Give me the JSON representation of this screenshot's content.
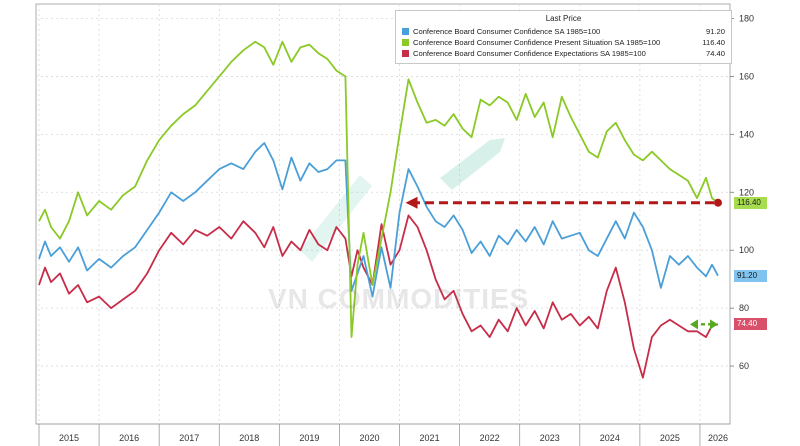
{
  "chart_data": {
    "type": "line",
    "ylim": [
      40,
      185
    ],
    "yticks": [
      60,
      80,
      100,
      120,
      140,
      160,
      180
    ],
    "xlim": [
      2014.95,
      2026.5
    ],
    "xticks": [
      {
        "label": "2015",
        "x": 2015.5
      },
      {
        "label": "2016",
        "x": 2016.5
      },
      {
        "label": "2017",
        "x": 2017.5
      },
      {
        "label": "2018",
        "x": 2018.5
      },
      {
        "label": "2019",
        "x": 2019.5
      },
      {
        "label": "2020",
        "x": 2020.5
      },
      {
        "label": "2021",
        "x": 2021.5
      },
      {
        "label": "2022",
        "x": 2022.5
      },
      {
        "label": "2023",
        "x": 2023.5
      },
      {
        "label": "2024",
        "x": 2024.5
      },
      {
        "label": "2025",
        "x": 2025.5
      },
      {
        "label": "2026",
        "x": 2026.3
      }
    ],
    "grid": true,
    "legend_position": "top-right",
    "legend_header": "Last Price",
    "series": [
      {
        "name": "Conference Board Consumer Confidence SA 1985=100",
        "color": "#4a9fd8",
        "last": "91.20",
        "x": [
          2015.0,
          2015.1,
          2015.2,
          2015.35,
          2015.5,
          2015.65,
          2015.8,
          2016.0,
          2016.2,
          2016.4,
          2016.6,
          2016.8,
          2017.0,
          2017.2,
          2017.4,
          2017.6,
          2017.8,
          2018.0,
          2018.2,
          2018.4,
          2018.6,
          2018.75,
          2018.9,
          2019.05,
          2019.2,
          2019.35,
          2019.5,
          2019.65,
          2019.8,
          2019.95,
          2020.1,
          2020.2,
          2020.3,
          2020.4,
          2020.55,
          2020.7,
          2020.85,
          2021.0,
          2021.15,
          2021.3,
          2021.45,
          2021.6,
          2021.75,
          2021.9,
          2022.05,
          2022.2,
          2022.35,
          2022.5,
          2022.65,
          2022.8,
          2022.95,
          2023.1,
          2023.25,
          2023.4,
          2023.55,
          2023.7,
          2023.85,
          2024.0,
          2024.15,
          2024.3,
          2024.45,
          2024.6,
          2024.75,
          2024.9,
          2025.05,
          2025.2,
          2025.35,
          2025.5,
          2025.65,
          2025.8,
          2025.95,
          2026.1,
          2026.2,
          2026.3
        ],
        "values": [
          97,
          103,
          98,
          101,
          96,
          101,
          93,
          97,
          94,
          98,
          101,
          107,
          113,
          120,
          117,
          120,
          124,
          128,
          130,
          128,
          134,
          137,
          131,
          121,
          132,
          124,
          130,
          127,
          128,
          131,
          131,
          86,
          92,
          98,
          84,
          101,
          87,
          113,
          128,
          122,
          115,
          110,
          108,
          112,
          107,
          99,
          103,
          98,
          105,
          102,
          107,
          103,
          108,
          102,
          110,
          104,
          105,
          106,
          100,
          98,
          104,
          110,
          104,
          113,
          108,
          100,
          87,
          98,
          95,
          98,
          94,
          91,
          95,
          91.2
        ]
      },
      {
        "name": "Conference Board Consumer Confidence Present Situation SA 1985=100",
        "color": "#8ac926",
        "last": "116.40",
        "x": [
          2015.0,
          2015.1,
          2015.2,
          2015.35,
          2015.5,
          2015.65,
          2015.8,
          2016.0,
          2016.2,
          2016.4,
          2016.6,
          2016.8,
          2017.0,
          2017.2,
          2017.4,
          2017.6,
          2017.8,
          2018.0,
          2018.2,
          2018.4,
          2018.6,
          2018.75,
          2018.9,
          2019.05,
          2019.2,
          2019.35,
          2019.5,
          2019.65,
          2019.8,
          2019.95,
          2020.1,
          2020.2,
          2020.3,
          2020.4,
          2020.55,
          2020.7,
          2020.85,
          2021.0,
          2021.15,
          2021.3,
          2021.45,
          2021.6,
          2021.75,
          2021.9,
          2022.05,
          2022.2,
          2022.35,
          2022.5,
          2022.65,
          2022.8,
          2022.95,
          2023.1,
          2023.25,
          2023.4,
          2023.55,
          2023.7,
          2023.85,
          2024.0,
          2024.15,
          2024.3,
          2024.45,
          2024.6,
          2024.75,
          2024.9,
          2025.05,
          2025.2,
          2025.35,
          2025.5,
          2025.65,
          2025.8,
          2025.95,
          2026.1,
          2026.2,
          2026.3
        ],
        "values": [
          110,
          114,
          108,
          104,
          110,
          120,
          112,
          117,
          114,
          119,
          122,
          131,
          138,
          143,
          147,
          150,
          155,
          160,
          165,
          169,
          172,
          170,
          164,
          172,
          165,
          170,
          171,
          168,
          166,
          162,
          160,
          70,
          95,
          106,
          88,
          104,
          120,
          140,
          159,
          151,
          144,
          145,
          143,
          147,
          142,
          139,
          152,
          150,
          153,
          151,
          145,
          154,
          146,
          151,
          139,
          153,
          146,
          140,
          134,
          132,
          141,
          144,
          138,
          133,
          131,
          134,
          131,
          128,
          126,
          124,
          118,
          125,
          118,
          116.4
        ]
      },
      {
        "name": "Conference Board Consumer Confidence Expectations SA 1985=100",
        "color": "#c72c48",
        "last": "74.40",
        "x": [
          2015.0,
          2015.1,
          2015.2,
          2015.35,
          2015.5,
          2015.65,
          2015.8,
          2016.0,
          2016.2,
          2016.4,
          2016.6,
          2016.8,
          2017.0,
          2017.2,
          2017.4,
          2017.6,
          2017.8,
          2018.0,
          2018.2,
          2018.4,
          2018.6,
          2018.75,
          2018.9,
          2019.05,
          2019.2,
          2019.35,
          2019.5,
          2019.65,
          2019.8,
          2019.95,
          2020.1,
          2020.2,
          2020.3,
          2020.4,
          2020.55,
          2020.7,
          2020.85,
          2021.0,
          2021.15,
          2021.3,
          2021.45,
          2021.6,
          2021.75,
          2021.9,
          2022.05,
          2022.2,
          2022.35,
          2022.5,
          2022.65,
          2022.8,
          2022.95,
          2023.1,
          2023.25,
          2023.4,
          2023.55,
          2023.7,
          2023.85,
          2024.0,
          2024.15,
          2024.3,
          2024.45,
          2024.6,
          2024.75,
          2024.9,
          2025.05,
          2025.2,
          2025.35,
          2025.5,
          2025.65,
          2025.8,
          2025.95,
          2026.1,
          2026.2,
          2026.3
        ],
        "values": [
          88,
          94,
          89,
          92,
          85,
          88,
          82,
          84,
          80,
          83,
          86,
          92,
          100,
          106,
          102,
          107,
          105,
          108,
          104,
          110,
          106,
          101,
          108,
          98,
          103,
          100,
          107,
          102,
          100,
          108,
          104,
          91,
          100,
          94,
          88,
          109,
          95,
          100,
          112,
          108,
          100,
          90,
          83,
          86,
          78,
          72,
          74,
          70,
          76,
          72,
          80,
          74,
          79,
          73,
          82,
          76,
          78,
          74,
          77,
          73,
          86,
          94,
          82,
          66,
          56,
          70,
          74,
          76,
          74,
          72,
          72,
          70,
          74,
          74.4
        ]
      }
    ],
    "annotations": {
      "arrow_green_from_value": 116.4,
      "arrow_green_to_x": 2021.1,
      "arrow_red_value": 74.4
    }
  },
  "watermark": "VN COMMODITIES"
}
